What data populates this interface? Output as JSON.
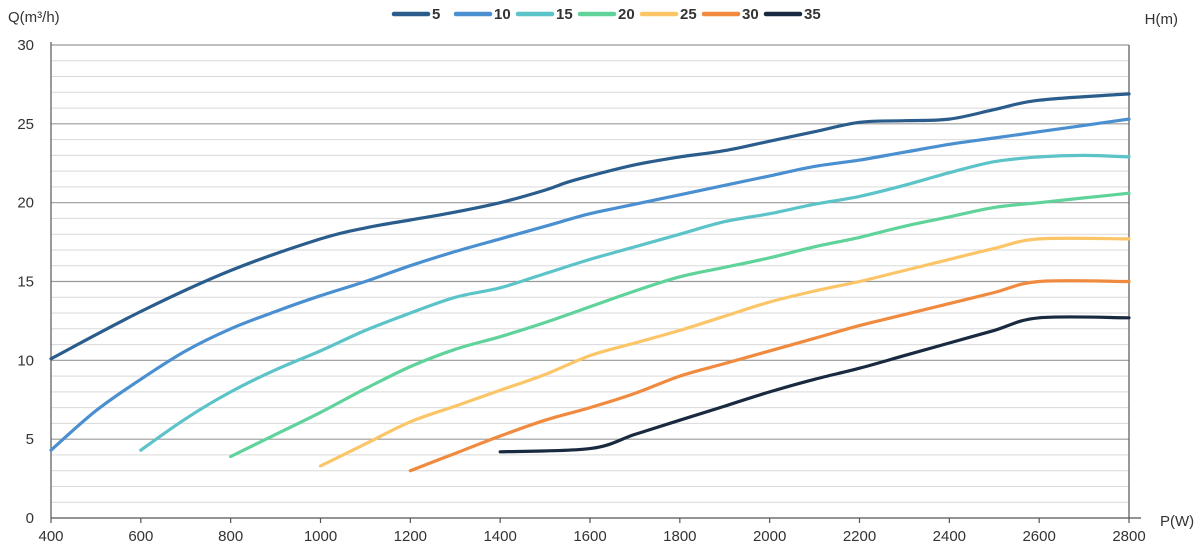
{
  "chart_data": {
    "type": "line",
    "xlabel": "P(W)",
    "ylabel": "Q(m³/h)",
    "legend_title": "H(m)",
    "legend_position": "top",
    "grid": true,
    "xlim": [
      400,
      2800
    ],
    "ylim": [
      0,
      30
    ],
    "x_ticks": [
      400,
      600,
      800,
      1000,
      1200,
      1400,
      1600,
      1800,
      2000,
      2200,
      2400,
      2600,
      2800
    ],
    "y_ticks": [
      0,
      5,
      10,
      15,
      20,
      25,
      30
    ],
    "series": [
      {
        "name": "5",
        "color": "#2a5d8c",
        "points": [
          [
            400,
            10.1
          ],
          [
            600,
            13.1
          ],
          [
            800,
            15.7
          ],
          [
            1000,
            17.7
          ],
          [
            1100,
            18.4
          ],
          [
            1200,
            18.9
          ],
          [
            1300,
            19.4
          ],
          [
            1400,
            20.0
          ],
          [
            1500,
            20.8
          ],
          [
            1550,
            21.3
          ],
          [
            1600,
            21.7
          ],
          [
            1700,
            22.4
          ],
          [
            1800,
            22.9
          ],
          [
            1900,
            23.3
          ],
          [
            2000,
            23.9
          ],
          [
            2100,
            24.5
          ],
          [
            2200,
            25.1
          ],
          [
            2300,
            25.2
          ],
          [
            2400,
            25.3
          ],
          [
            2500,
            25.9
          ],
          [
            2600,
            26.5
          ],
          [
            2800,
            26.9
          ]
        ]
      },
      {
        "name": "10",
        "color": "#4a8fd0",
        "points": [
          [
            400,
            4.3
          ],
          [
            500,
            6.8
          ],
          [
            600,
            8.8
          ],
          [
            700,
            10.6
          ],
          [
            800,
            12.0
          ],
          [
            900,
            13.1
          ],
          [
            1000,
            14.1
          ],
          [
            1100,
            15.0
          ],
          [
            1200,
            16.0
          ],
          [
            1300,
            16.9
          ],
          [
            1400,
            17.7
          ],
          [
            1500,
            18.5
          ],
          [
            1600,
            19.3
          ],
          [
            1700,
            19.9
          ],
          [
            1800,
            20.5
          ],
          [
            1900,
            21.1
          ],
          [
            2000,
            21.7
          ],
          [
            2100,
            22.3
          ],
          [
            2200,
            22.7
          ],
          [
            2300,
            23.2
          ],
          [
            2400,
            23.7
          ],
          [
            2500,
            24.1
          ],
          [
            2600,
            24.5
          ],
          [
            2700,
            24.9
          ],
          [
            2800,
            25.3
          ]
        ]
      },
      {
        "name": "15",
        "color": "#5cc4c9",
        "points": [
          [
            600,
            4.3
          ],
          [
            700,
            6.3
          ],
          [
            800,
            8.0
          ],
          [
            900,
            9.4
          ],
          [
            1000,
            10.6
          ],
          [
            1100,
            11.9
          ],
          [
            1200,
            13.0
          ],
          [
            1300,
            14.0
          ],
          [
            1400,
            14.6
          ],
          [
            1500,
            15.5
          ],
          [
            1600,
            16.4
          ],
          [
            1700,
            17.2
          ],
          [
            1800,
            18.0
          ],
          [
            1900,
            18.8
          ],
          [
            2000,
            19.3
          ],
          [
            2100,
            19.9
          ],
          [
            2200,
            20.4
          ],
          [
            2300,
            21.1
          ],
          [
            2400,
            21.9
          ],
          [
            2500,
            22.6
          ],
          [
            2600,
            22.9
          ],
          [
            2700,
            23.0
          ],
          [
            2800,
            22.9
          ]
        ]
      },
      {
        "name": "20",
        "color": "#5fd39a",
        "points": [
          [
            800,
            3.9
          ],
          [
            900,
            5.3
          ],
          [
            1000,
            6.7
          ],
          [
            1100,
            8.2
          ],
          [
            1200,
            9.6
          ],
          [
            1300,
            10.7
          ],
          [
            1400,
            11.5
          ],
          [
            1500,
            12.4
          ],
          [
            1600,
            13.4
          ],
          [
            1700,
            14.4
          ],
          [
            1800,
            15.3
          ],
          [
            1900,
            15.9
          ],
          [
            2000,
            16.5
          ],
          [
            2100,
            17.2
          ],
          [
            2200,
            17.8
          ],
          [
            2300,
            18.5
          ],
          [
            2400,
            19.1
          ],
          [
            2500,
            19.7
          ],
          [
            2600,
            20.0
          ],
          [
            2700,
            20.3
          ],
          [
            2800,
            20.6
          ]
        ]
      },
      {
        "name": "25",
        "color": "#fbc568",
        "points": [
          [
            1000,
            3.3
          ],
          [
            1100,
            4.7
          ],
          [
            1200,
            6.1
          ],
          [
            1300,
            7.1
          ],
          [
            1400,
            8.1
          ],
          [
            1500,
            9.1
          ],
          [
            1600,
            10.3
          ],
          [
            1700,
            11.1
          ],
          [
            1800,
            11.9
          ],
          [
            1900,
            12.8
          ],
          [
            2000,
            13.7
          ],
          [
            2100,
            14.4
          ],
          [
            2200,
            15.0
          ],
          [
            2300,
            15.7
          ],
          [
            2400,
            16.4
          ],
          [
            2500,
            17.1
          ],
          [
            2600,
            17.7
          ],
          [
            2800,
            17.7
          ]
        ]
      },
      {
        "name": "30",
        "color": "#f08a3e",
        "points": [
          [
            1200,
            3.0
          ],
          [
            1300,
            4.1
          ],
          [
            1400,
            5.2
          ],
          [
            1500,
            6.2
          ],
          [
            1600,
            7.0
          ],
          [
            1700,
            7.9
          ],
          [
            1800,
            9.0
          ],
          [
            1900,
            9.8
          ],
          [
            2000,
            10.6
          ],
          [
            2100,
            11.4
          ],
          [
            2200,
            12.2
          ],
          [
            2300,
            12.9
          ],
          [
            2400,
            13.6
          ],
          [
            2500,
            14.3
          ],
          [
            2600,
            15.0
          ],
          [
            2800,
            15.0
          ]
        ]
      },
      {
        "name": "35",
        "color": "#182940",
        "points": [
          [
            1400,
            4.2
          ],
          [
            1600,
            4.4
          ],
          [
            1700,
            5.3
          ],
          [
            1800,
            6.2
          ],
          [
            1900,
            7.1
          ],
          [
            2000,
            8.0
          ],
          [
            2100,
            8.8
          ],
          [
            2200,
            9.5
          ],
          [
            2300,
            10.3
          ],
          [
            2400,
            11.1
          ],
          [
            2500,
            11.9
          ],
          [
            2600,
            12.7
          ],
          [
            2800,
            12.7
          ]
        ]
      }
    ]
  }
}
